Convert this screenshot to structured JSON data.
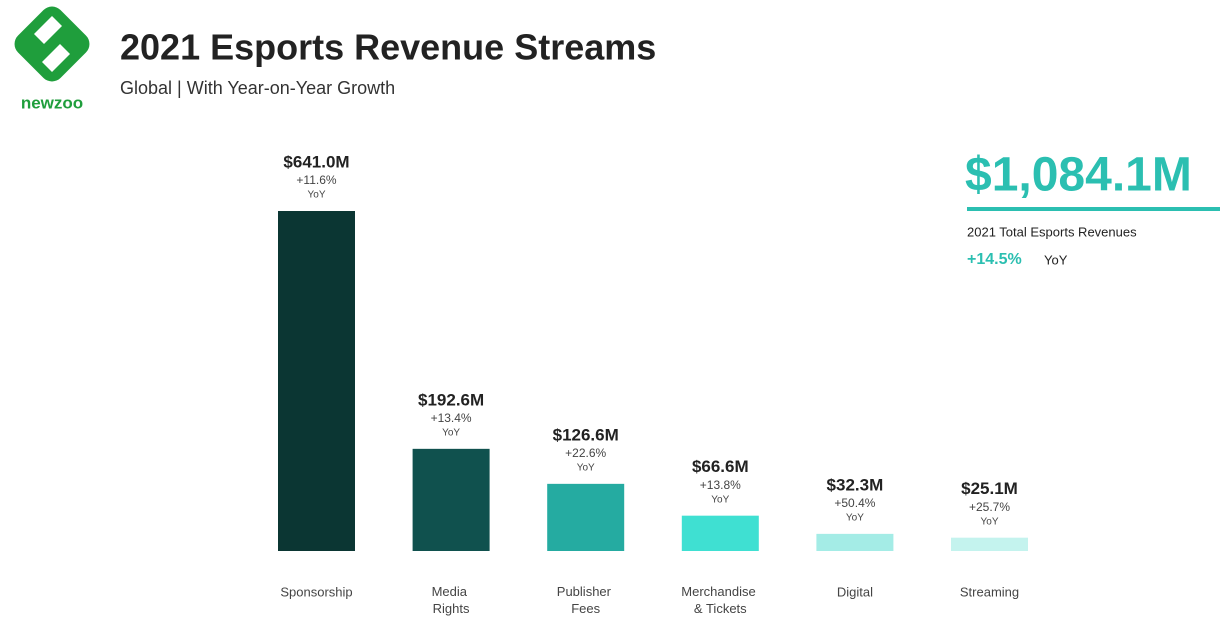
{
  "chart_data": {
    "type": "bar",
    "brand": "newzoo",
    "title": "2021 Esports Revenue Streams",
    "subtitle": "Global | With Year-on-Year Growth",
    "categories": [
      "Sponsorship",
      "Media Rights",
      "Publisher Fees",
      "Merchandise & Tickets",
      "Digital",
      "Streaming"
    ],
    "values": [
      641.0,
      192.6,
      126.6,
      66.6,
      32.3,
      25.1
    ],
    "value_labels": [
      "$641.0M",
      "$192.6M",
      "$126.6M",
      "$66.6M",
      "$32.3M",
      "$25.1M"
    ],
    "growth_labels": [
      "+11.6%",
      "+13.4%",
      "+22.6%",
      "+13.8%",
      "+50.4%",
      "+25.7%"
    ],
    "growth_unit": "YoY",
    "colors": [
      "#0b3633",
      "#10514e",
      "#25aba1",
      "#3fe0d2",
      "#a4ece6",
      "#c4f3ee"
    ],
    "total": {
      "value_label": "$1,084.1M",
      "label": "2021 Total Esports Revenues",
      "growth": "+14.5%",
      "growth_unit": "YoY"
    }
  }
}
